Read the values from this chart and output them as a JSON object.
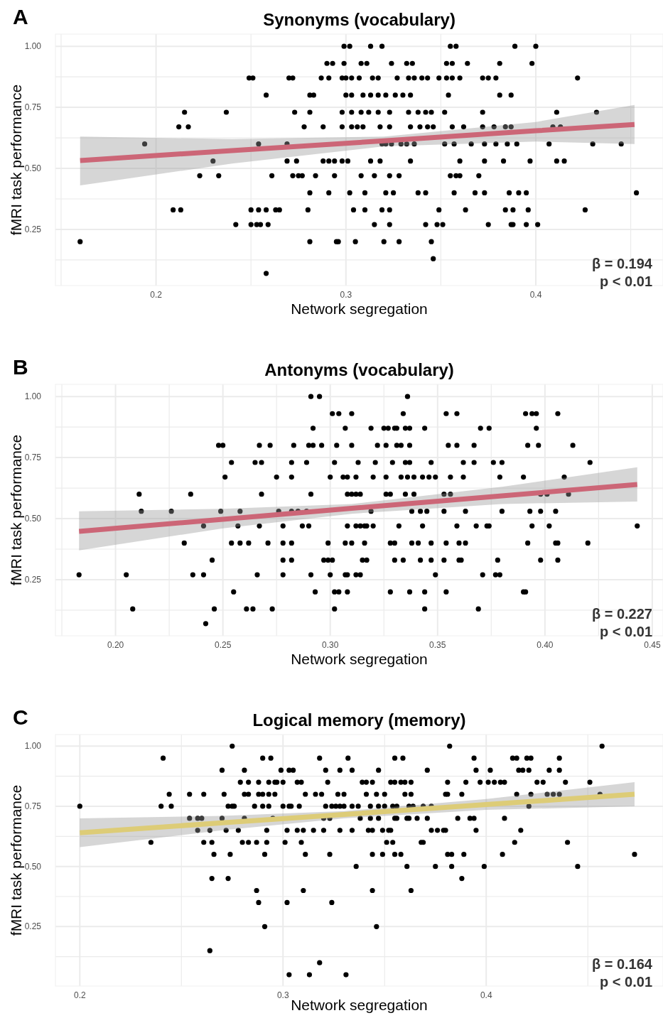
{
  "chart_data": [
    {
      "type": "scatter",
      "title": "Synonyms (vocabulary)",
      "xlabel": "Network segregation",
      "ylabel": "fMRI task performance",
      "annotations": [
        "A",
        "β = 0.194",
        "p < 0.01"
      ],
      "xlim": [
        0.147,
        0.467
      ],
      "ylim": [
        0.02,
        1.05
      ],
      "xticks": [
        {
          "value": 0.15,
          "label": null
        },
        0.2,
        {
          "value": 0.25,
          "label": null
        },
        0.3,
        {
          "value": 0.35,
          "label": null
        },
        0.4,
        {
          "value": 0.45,
          "label": null
        }
      ],
      "yticks": [
        {
          "value": 0.125,
          "label": null
        },
        {
          "value": 0.25,
          "label": "0.25"
        },
        {
          "value": 0.375,
          "label": null
        },
        {
          "value": 0.5,
          "label": "0.50"
        },
        {
          "value": 0.625,
          "label": null
        },
        {
          "value": 0.75,
          "label": "0.75"
        },
        {
          "value": 0.875,
          "label": null
        },
        {
          "value": 1,
          "label": "1.00"
        }
      ],
      "grid": true,
      "marker": "circle",
      "series": [
        {
          "type": "scatter",
          "color": "#000000",
          "x": [
            0.299,
            0.302,
            0.313,
            0.319,
            0.355,
            0.358,
            0.389,
            0.4,
            0.29,
            0.293,
            0.299,
            0.308,
            0.311,
            0.324,
            0.332,
            0.335,
            0.353,
            0.356,
            0.364,
            0.381,
            0.398,
            0.249,
            0.251,
            0.27,
            0.272,
            0.287,
            0.291,
            0.298,
            0.3,
            0.303,
            0.307,
            0.314,
            0.317,
            0.327,
            0.333,
            0.336,
            0.34,
            0.343,
            0.349,
            0.353,
            0.356,
            0.36,
            0.372,
            0.375,
            0.379,
            0.422,
            0.258,
            0.281,
            0.283,
            0.3,
            0.303,
            0.309,
            0.313,
            0.317,
            0.321,
            0.326,
            0.33,
            0.334,
            0.354,
            0.381,
            0.387,
            0.215,
            0.237,
            0.273,
            0.281,
            0.298,
            0.303,
            0.308,
            0.312,
            0.317,
            0.323,
            0.333,
            0.338,
            0.342,
            0.345,
            0.352,
            0.372,
            0.411,
            0.432,
            0.212,
            0.217,
            0.278,
            0.288,
            0.298,
            0.303,
            0.306,
            0.309,
            0.318,
            0.323,
            0.334,
            0.339,
            0.343,
            0.346,
            0.356,
            0.362,
            0.372,
            0.378,
            0.384,
            0.387,
            0.409,
            0.413,
            0.194,
            0.254,
            0.269,
            0.319,
            0.321,
            0.324,
            0.329,
            0.332,
            0.336,
            0.352,
            0.357,
            0.366,
            0.373,
            0.379,
            0.385,
            0.39,
            0.407,
            0.43,
            0.445,
            0.23,
            0.269,
            0.274,
            0.288,
            0.291,
            0.294,
            0.298,
            0.301,
            0.313,
            0.318,
            0.334,
            0.36,
            0.373,
            0.383,
            0.397,
            0.411,
            0.415,
            0.223,
            0.233,
            0.261,
            0.272,
            0.275,
            0.277,
            0.284,
            0.294,
            0.308,
            0.315,
            0.323,
            0.328,
            0.355,
            0.358,
            0.36,
            0.37,
            0.281,
            0.291,
            0.302,
            0.31,
            0.321,
            0.325,
            0.338,
            0.342,
            0.357,
            0.368,
            0.373,
            0.386,
            0.391,
            0.395,
            0.453,
            0.209,
            0.213,
            0.25,
            0.254,
            0.258,
            0.263,
            0.265,
            0.28,
            0.304,
            0.31,
            0.319,
            0.323,
            0.349,
            0.363,
            0.384,
            0.388,
            0.396,
            0.426,
            0.242,
            0.25,
            0.253,
            0.255,
            0.259,
            0.315,
            0.323,
            0.342,
            0.348,
            0.351,
            0.375,
            0.387,
            0.388,
            0.395,
            0.401,
            0.16,
            0.281,
            0.295,
            0.296,
            0.305,
            0.32,
            0.328,
            0.345,
            0.346,
            0.258
          ],
          "values": [
            1,
            1,
            1,
            1,
            1,
            1,
            1,
            1,
            0.93,
            0.93,
            0.93,
            0.93,
            0.93,
            0.93,
            0.93,
            0.93,
            0.93,
            0.93,
            0.93,
            0.93,
            0.93,
            0.87,
            0.87,
            0.87,
            0.87,
            0.87,
            0.87,
            0.87,
            0.87,
            0.87,
            0.87,
            0.87,
            0.87,
            0.87,
            0.87,
            0.87,
            0.87,
            0.87,
            0.87,
            0.87,
            0.87,
            0.87,
            0.87,
            0.87,
            0.87,
            0.87,
            0.8,
            0.8,
            0.8,
            0.8,
            0.8,
            0.8,
            0.8,
            0.8,
            0.8,
            0.8,
            0.8,
            0.8,
            0.8,
            0.8,
            0.8,
            0.73,
            0.73,
            0.73,
            0.73,
            0.73,
            0.73,
            0.73,
            0.73,
            0.73,
            0.73,
            0.73,
            0.73,
            0.73,
            0.73,
            0.73,
            0.73,
            0.73,
            0.73,
            0.67,
            0.67,
            0.67,
            0.67,
            0.67,
            0.67,
            0.67,
            0.67,
            0.67,
            0.67,
            0.67,
            0.67,
            0.67,
            0.67,
            0.67,
            0.67,
            0.67,
            0.67,
            0.67,
            0.67,
            0.67,
            0.67,
            0.6,
            0.6,
            0.6,
            0.6,
            0.6,
            0.6,
            0.6,
            0.6,
            0.6,
            0.6,
            0.6,
            0.6,
            0.6,
            0.6,
            0.6,
            0.6,
            0.6,
            0.6,
            0.6,
            0.53,
            0.53,
            0.53,
            0.53,
            0.53,
            0.53,
            0.53,
            0.53,
            0.53,
            0.53,
            0.53,
            0.53,
            0.53,
            0.53,
            0.53,
            0.53,
            0.53,
            0.47,
            0.47,
            0.47,
            0.47,
            0.47,
            0.47,
            0.47,
            0.47,
            0.47,
            0.47,
            0.47,
            0.47,
            0.47,
            0.47,
            0.47,
            0.47,
            0.4,
            0.4,
            0.4,
            0.4,
            0.4,
            0.4,
            0.4,
            0.4,
            0.4,
            0.4,
            0.4,
            0.4,
            0.4,
            0.4,
            0.4,
            0.33,
            0.33,
            0.33,
            0.33,
            0.33,
            0.33,
            0.33,
            0.33,
            0.33,
            0.33,
            0.33,
            0.33,
            0.33,
            0.33,
            0.33,
            0.33,
            0.33,
            0.33,
            0.27,
            0.27,
            0.27,
            0.27,
            0.27,
            0.27,
            0.27,
            0.27,
            0.27,
            0.27,
            0.27,
            0.27,
            0.27,
            0.27,
            0.27,
            0.2,
            0.2,
            0.2,
            0.2,
            0.2,
            0.2,
            0.2,
            0.2,
            0.13,
            0.07
          ]
        },
        {
          "type": "line",
          "color": "#cc6677",
          "marker": "none",
          "x": [
            0.16,
            0.24,
            0.32,
            0.4,
            0.452
          ],
          "values": [
            0.532,
            0.573,
            0.613,
            0.654,
            0.68
          ],
          "lower": [
            0.43,
            0.52,
            0.59,
            0.61,
            0.6
          ],
          "upper": [
            0.63,
            0.62,
            0.63,
            0.69,
            0.76
          ]
        }
      ]
    },
    {
      "type": "scatter",
      "title": "Antonyms (vocabulary)",
      "xlabel": "Network segregation",
      "ylabel": "fMRI task performance",
      "annotations": [
        "B",
        "β = 0.227",
        "p < 0.01"
      ],
      "xlim": [
        0.172,
        0.455
      ],
      "ylim": [
        0.02,
        1.05
      ],
      "xticks": [
        {
          "value": 0.175,
          "label": null
        },
        {
          "value": 0.2,
          "label": "0.20"
        },
        {
          "value": 0.225,
          "label": null
        },
        {
          "value": 0.25,
          "label": "0.25"
        },
        {
          "value": 0.275,
          "label": null
        },
        {
          "value": 0.3,
          "label": "0.30"
        },
        {
          "value": 0.325,
          "label": null
        },
        {
          "value": 0.35,
          "label": "0.35"
        },
        {
          "value": 0.375,
          "label": null
        },
        {
          "value": 0.4,
          "label": "0.40"
        },
        {
          "value": 0.425,
          "label": null
        },
        {
          "value": 0.45,
          "label": "0.45"
        }
      ],
      "yticks": [
        {
          "value": 0.125,
          "label": null
        },
        {
          "value": 0.25,
          "label": "0.25"
        },
        {
          "value": 0.375,
          "label": null
        },
        {
          "value": 0.5,
          "label": "0.50"
        },
        {
          "value": 0.625,
          "label": null
        },
        {
          "value": 0.75,
          "label": "0.75"
        },
        {
          "value": 0.875,
          "label": null
        },
        {
          "value": 1,
          "label": "1.00"
        }
      ],
      "grid": true,
      "marker": "circle",
      "series": [
        {
          "type": "scatter",
          "color": "#000000",
          "x": [
            0.291,
            0.295,
            0.336,
            0.301,
            0.304,
            0.31,
            0.334,
            0.354,
            0.359,
            0.391,
            0.394,
            0.396,
            0.406,
            0.292,
            0.307,
            0.319,
            0.325,
            0.327,
            0.33,
            0.331,
            0.335,
            0.337,
            0.344,
            0.37,
            0.374,
            0.396,
            0.248,
            0.25,
            0.267,
            0.272,
            0.283,
            0.29,
            0.292,
            0.296,
            0.303,
            0.31,
            0.322,
            0.326,
            0.331,
            0.333,
            0.337,
            0.355,
            0.359,
            0.367,
            0.392,
            0.397,
            0.413,
            0.254,
            0.265,
            0.268,
            0.282,
            0.289,
            0.302,
            0.313,
            0.321,
            0.329,
            0.335,
            0.337,
            0.347,
            0.362,
            0.367,
            0.376,
            0.38,
            0.421,
            0.251,
            0.275,
            0.282,
            0.3,
            0.306,
            0.308,
            0.312,
            0.32,
            0.326,
            0.333,
            0.336,
            0.339,
            0.343,
            0.346,
            0.349,
            0.356,
            0.362,
            0.379,
            0.39,
            0.409,
            0.211,
            0.235,
            0.268,
            0.291,
            0.308,
            0.31,
            0.312,
            0.314,
            0.326,
            0.328,
            0.335,
            0.339,
            0.353,
            0.356,
            0.398,
            0.401,
            0.411,
            0.212,
            0.226,
            0.249,
            0.258,
            0.276,
            0.282,
            0.285,
            0.289,
            0.319,
            0.338,
            0.342,
            0.345,
            0.353,
            0.363,
            0.38,
            0.393,
            0.398,
            0.405,
            0.241,
            0.257,
            0.267,
            0.278,
            0.287,
            0.29,
            0.308,
            0.312,
            0.314,
            0.316,
            0.317,
            0.32,
            0.332,
            0.343,
            0.359,
            0.368,
            0.373,
            0.374,
            0.394,
            0.402,
            0.443,
            0.232,
            0.254,
            0.258,
            0.262,
            0.271,
            0.278,
            0.282,
            0.299,
            0.307,
            0.31,
            0.316,
            0.328,
            0.33,
            0.338,
            0.341,
            0.347,
            0.354,
            0.36,
            0.363,
            0.392,
            0.405,
            0.406,
            0.42,
            0.245,
            0.278,
            0.282,
            0.297,
            0.299,
            0.301,
            0.315,
            0.317,
            0.33,
            0.334,
            0.342,
            0.347,
            0.353,
            0.36,
            0.361,
            0.378,
            0.398,
            0.406,
            0.183,
            0.205,
            0.236,
            0.241,
            0.266,
            0.278,
            0.291,
            0.3,
            0.307,
            0.308,
            0.312,
            0.314,
            0.349,
            0.371,
            0.377,
            0.379,
            0.255,
            0.293,
            0.302,
            0.304,
            0.308,
            0.328,
            0.337,
            0.344,
            0.354,
            0.39,
            0.391,
            0.208,
            0.246,
            0.261,
            0.264,
            0.273,
            0.302,
            0.344,
            0.369,
            0.242
          ],
          "values": [
            1,
            1,
            1,
            0.93,
            0.93,
            0.93,
            0.93,
            0.93,
            0.93,
            0.93,
            0.93,
            0.93,
            0.93,
            0.87,
            0.87,
            0.87,
            0.87,
            0.87,
            0.87,
            0.87,
            0.87,
            0.87,
            0.87,
            0.87,
            0.87,
            0.87,
            0.8,
            0.8,
            0.8,
            0.8,
            0.8,
            0.8,
            0.8,
            0.8,
            0.8,
            0.8,
            0.8,
            0.8,
            0.8,
            0.8,
            0.8,
            0.8,
            0.8,
            0.8,
            0.8,
            0.8,
            0.8,
            0.73,
            0.73,
            0.73,
            0.73,
            0.73,
            0.73,
            0.73,
            0.73,
            0.73,
            0.73,
            0.73,
            0.73,
            0.73,
            0.73,
            0.73,
            0.73,
            0.73,
            0.67,
            0.67,
            0.67,
            0.67,
            0.67,
            0.67,
            0.67,
            0.67,
            0.67,
            0.67,
            0.67,
            0.67,
            0.67,
            0.67,
            0.67,
            0.67,
            0.67,
            0.67,
            0.67,
            0.67,
            0.6,
            0.6,
            0.6,
            0.6,
            0.6,
            0.6,
            0.6,
            0.6,
            0.6,
            0.6,
            0.6,
            0.6,
            0.6,
            0.6,
            0.6,
            0.6,
            0.6,
            0.53,
            0.53,
            0.53,
            0.53,
            0.53,
            0.53,
            0.53,
            0.53,
            0.53,
            0.53,
            0.53,
            0.53,
            0.53,
            0.53,
            0.53,
            0.53,
            0.53,
            0.53,
            0.47,
            0.47,
            0.47,
            0.47,
            0.47,
            0.47,
            0.47,
            0.47,
            0.47,
            0.47,
            0.47,
            0.47,
            0.47,
            0.47,
            0.47,
            0.47,
            0.47,
            0.47,
            0.47,
            0.47,
            0.47,
            0.4,
            0.4,
            0.4,
            0.4,
            0.4,
            0.4,
            0.4,
            0.4,
            0.4,
            0.4,
            0.4,
            0.4,
            0.4,
            0.4,
            0.4,
            0.4,
            0.4,
            0.4,
            0.4,
            0.4,
            0.4,
            0.4,
            0.4,
            0.33,
            0.33,
            0.33,
            0.33,
            0.33,
            0.33,
            0.33,
            0.33,
            0.33,
            0.33,
            0.33,
            0.33,
            0.33,
            0.33,
            0.33,
            0.33,
            0.33,
            0.33,
            0.27,
            0.27,
            0.27,
            0.27,
            0.27,
            0.27,
            0.27,
            0.27,
            0.27,
            0.27,
            0.27,
            0.27,
            0.27,
            0.27,
            0.27,
            0.27,
            0.2,
            0.2,
            0.2,
            0.2,
            0.2,
            0.2,
            0.2,
            0.2,
            0.2,
            0.2,
            0.2,
            0.13,
            0.13,
            0.13,
            0.13,
            0.13,
            0.13,
            0.13,
            0.13,
            0.07
          ]
        },
        {
          "type": "line",
          "color": "#cc6677",
          "marker": "none",
          "x": [
            0.183,
            0.25,
            0.31,
            0.38,
            0.443
          ],
          "values": [
            0.448,
            0.497,
            0.542,
            0.593,
            0.64
          ],
          "lower": [
            0.37,
            0.46,
            0.52,
            0.56,
            0.57
          ],
          "upper": [
            0.53,
            0.54,
            0.56,
            0.63,
            0.71
          ]
        }
      ]
    },
    {
      "type": "scatter",
      "title": "Logical memory (memory)",
      "xlabel": "Network segregation",
      "ylabel": "fMRI task performance",
      "annotations": [
        "C",
        "β = 0.164",
        "p < 0.01"
      ],
      "xlim": [
        0.188,
        0.487
      ],
      "ylim": [
        0.003,
        1.048
      ],
      "xticks": [
        0.2,
        {
          "value": 0.25,
          "label": null
        },
        0.3,
        {
          "value": 0.35,
          "label": null
        },
        0.4,
        {
          "value": 0.45,
          "label": null
        }
      ],
      "yticks": [
        {
          "value": 0.125,
          "label": null
        },
        {
          "value": 0.25,
          "label": "0.25"
        },
        {
          "value": 0.375,
          "label": null
        },
        {
          "value": 0.5,
          "label": "0.50"
        },
        {
          "value": 0.625,
          "label": null
        },
        {
          "value": 0.75,
          "label": "0.75"
        },
        {
          "value": 0.875,
          "label": null
        },
        {
          "value": 1,
          "label": "1.00"
        }
      ],
      "grid": true,
      "marker": "circle",
      "series": [
        {
          "type": "scatter",
          "color": "#000000",
          "x": [
            0.275,
            0.382,
            0.457,
            0.241,
            0.29,
            0.294,
            0.318,
            0.332,
            0.355,
            0.359,
            0.394,
            0.413,
            0.415,
            0.42,
            0.422,
            0.436,
            0.27,
            0.281,
            0.299,
            0.303,
            0.305,
            0.321,
            0.328,
            0.334,
            0.347,
            0.371,
            0.395,
            0.402,
            0.416,
            0.418,
            0.421,
            0.431,
            0.436,
            0.279,
            0.283,
            0.288,
            0.293,
            0.296,
            0.297,
            0.3,
            0.307,
            0.309,
            0.322,
            0.339,
            0.341,
            0.344,
            0.353,
            0.355,
            0.358,
            0.36,
            0.363,
            0.381,
            0.39,
            0.397,
            0.401,
            0.404,
            0.407,
            0.409,
            0.425,
            0.428,
            0.439,
            0.451,
            0.244,
            0.254,
            0.261,
            0.271,
            0.281,
            0.283,
            0.288,
            0.29,
            0.293,
            0.296,
            0.311,
            0.316,
            0.319,
            0.327,
            0.33,
            0.341,
            0.346,
            0.35,
            0.36,
            0.363,
            0.38,
            0.381,
            0.388,
            0.415,
            0.422,
            0.43,
            0.433,
            0.436,
            0.456,
            0.2,
            0.24,
            0.245,
            0.273,
            0.275,
            0.276,
            0.286,
            0.29,
            0.293,
            0.3,
            0.303,
            0.304,
            0.308,
            0.321,
            0.324,
            0.326,
            0.328,
            0.33,
            0.334,
            0.337,
            0.343,
            0.347,
            0.35,
            0.354,
            0.356,
            0.362,
            0.364,
            0.369,
            0.373,
            0.421,
            0.254,
            0.258,
            0.26,
            0.27,
            0.281,
            0.295,
            0.32,
            0.323,
            0.338,
            0.343,
            0.347,
            0.355,
            0.356,
            0.361,
            0.362,
            0.366,
            0.371,
            0.386,
            0.392,
            0.394,
            0.409,
            0.258,
            0.264,
            0.272,
            0.278,
            0.292,
            0.302,
            0.307,
            0.31,
            0.315,
            0.32,
            0.328,
            0.334,
            0.342,
            0.344,
            0.349,
            0.352,
            0.353,
            0.373,
            0.376,
            0.379,
            0.38,
            0.395,
            0.417,
            0.235,
            0.261,
            0.265,
            0.28,
            0.283,
            0.287,
            0.292,
            0.301,
            0.309,
            0.351,
            0.354,
            0.368,
            0.369,
            0.414,
            0.44,
            0.266,
            0.274,
            0.291,
            0.311,
            0.323,
            0.344,
            0.349,
            0.355,
            0.358,
            0.381,
            0.383,
            0.389,
            0.408,
            0.473,
            0.336,
            0.361,
            0.375,
            0.383,
            0.399,
            0.445,
            0.265,
            0.273,
            0.388,
            0.287,
            0.31,
            0.344,
            0.363,
            0.288,
            0.302,
            0.324,
            0.291,
            0.346,
            0.264,
            0.318,
            0.303,
            0.313,
            0.331
          ],
          "values": [
            1,
            1,
            1,
            0.95,
            0.95,
            0.95,
            0.95,
            0.95,
            0.95,
            0.95,
            0.95,
            0.95,
            0.95,
            0.95,
            0.95,
            0.95,
            0.9,
            0.9,
            0.9,
            0.9,
            0.9,
            0.9,
            0.9,
            0.9,
            0.9,
            0.9,
            0.9,
            0.9,
            0.9,
            0.9,
            0.9,
            0.9,
            0.9,
            0.85,
            0.85,
            0.85,
            0.85,
            0.85,
            0.85,
            0.85,
            0.85,
            0.85,
            0.85,
            0.85,
            0.85,
            0.85,
            0.85,
            0.85,
            0.85,
            0.85,
            0.85,
            0.85,
            0.85,
            0.85,
            0.85,
            0.85,
            0.85,
            0.85,
            0.85,
            0.85,
            0.85,
            0.85,
            0.8,
            0.8,
            0.8,
            0.8,
            0.8,
            0.8,
            0.8,
            0.8,
            0.8,
            0.8,
            0.8,
            0.8,
            0.8,
            0.8,
            0.8,
            0.8,
            0.8,
            0.8,
            0.8,
            0.8,
            0.8,
            0.8,
            0.8,
            0.8,
            0.8,
            0.8,
            0.8,
            0.8,
            0.8,
            0.75,
            0.75,
            0.75,
            0.75,
            0.75,
            0.75,
            0.75,
            0.75,
            0.75,
            0.75,
            0.75,
            0.75,
            0.75,
            0.75,
            0.75,
            0.75,
            0.75,
            0.75,
            0.75,
            0.75,
            0.75,
            0.75,
            0.75,
            0.75,
            0.75,
            0.75,
            0.75,
            0.75,
            0.75,
            0.75,
            0.7,
            0.7,
            0.7,
            0.7,
            0.7,
            0.7,
            0.7,
            0.7,
            0.7,
            0.7,
            0.7,
            0.7,
            0.7,
            0.7,
            0.7,
            0.7,
            0.7,
            0.7,
            0.7,
            0.7,
            0.7,
            0.65,
            0.65,
            0.65,
            0.65,
            0.65,
            0.65,
            0.65,
            0.65,
            0.65,
            0.65,
            0.65,
            0.65,
            0.65,
            0.65,
            0.65,
            0.65,
            0.65,
            0.65,
            0.65,
            0.65,
            0.65,
            0.65,
            0.65,
            0.6,
            0.6,
            0.6,
            0.6,
            0.6,
            0.6,
            0.6,
            0.6,
            0.6,
            0.6,
            0.6,
            0.6,
            0.6,
            0.6,
            0.6,
            0.55,
            0.55,
            0.55,
            0.55,
            0.55,
            0.55,
            0.55,
            0.55,
            0.55,
            0.55,
            0.55,
            0.55,
            0.55,
            0.55,
            0.5,
            0.5,
            0.5,
            0.5,
            0.5,
            0.5,
            0.45,
            0.45,
            0.45,
            0.4,
            0.4,
            0.4,
            0.4,
            0.35,
            0.35,
            0.35,
            0.25,
            0.25,
            0.15,
            0.1,
            0.05,
            0.05,
            0.05
          ]
        },
        {
          "type": "line",
          "color": "#ddcc77",
          "marker": "none",
          "x": [
            0.2,
            0.27,
            0.33,
            0.4,
            0.473
          ],
          "values": [
            0.64,
            0.681,
            0.716,
            0.757,
            0.8
          ],
          "lower": [
            0.58,
            0.65,
            0.7,
            0.735,
            0.75
          ],
          "upper": [
            0.7,
            0.71,
            0.73,
            0.78,
            0.85
          ]
        }
      ]
    }
  ]
}
